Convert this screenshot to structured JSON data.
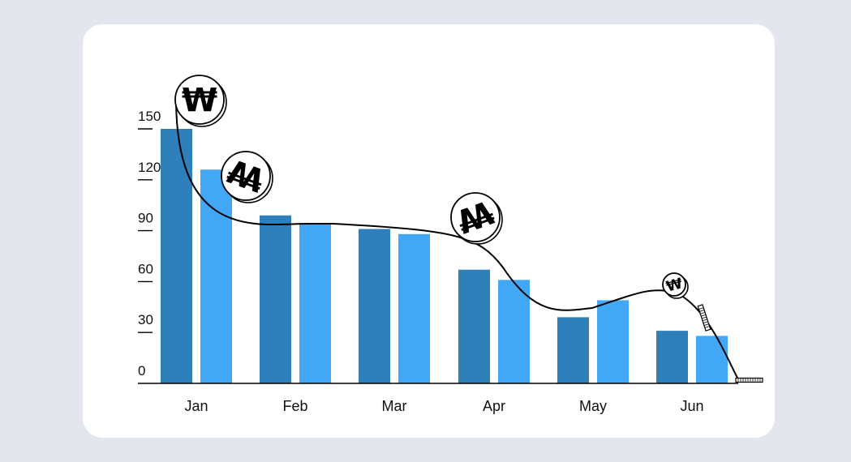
{
  "chart_data": {
    "type": "bar",
    "title": "",
    "xlabel": "",
    "ylabel": "",
    "categories": [
      "Jan",
      "Feb",
      "Mar",
      "Apr",
      "May",
      "Jun"
    ],
    "ylim": [
      0,
      150
    ],
    "yticks": [
      0,
      30,
      60,
      90,
      120,
      150
    ],
    "grid": false,
    "legend": "none",
    "series": [
      {
        "color": "#2f7fba",
        "values": [
          150,
          99,
          91,
          67,
          39,
          31
        ]
      },
      {
        "color": "#42a7f5",
        "values": [
          126,
          94,
          88,
          61,
          49,
          28
        ]
      }
    ],
    "decoration": {
      "type": "falling coin curve",
      "symbol": "₩",
      "stroke_color": "#000000"
    }
  },
  "colors": {
    "background": "#e3e6ed",
    "card": "#ffffff",
    "axis": "#000000"
  }
}
